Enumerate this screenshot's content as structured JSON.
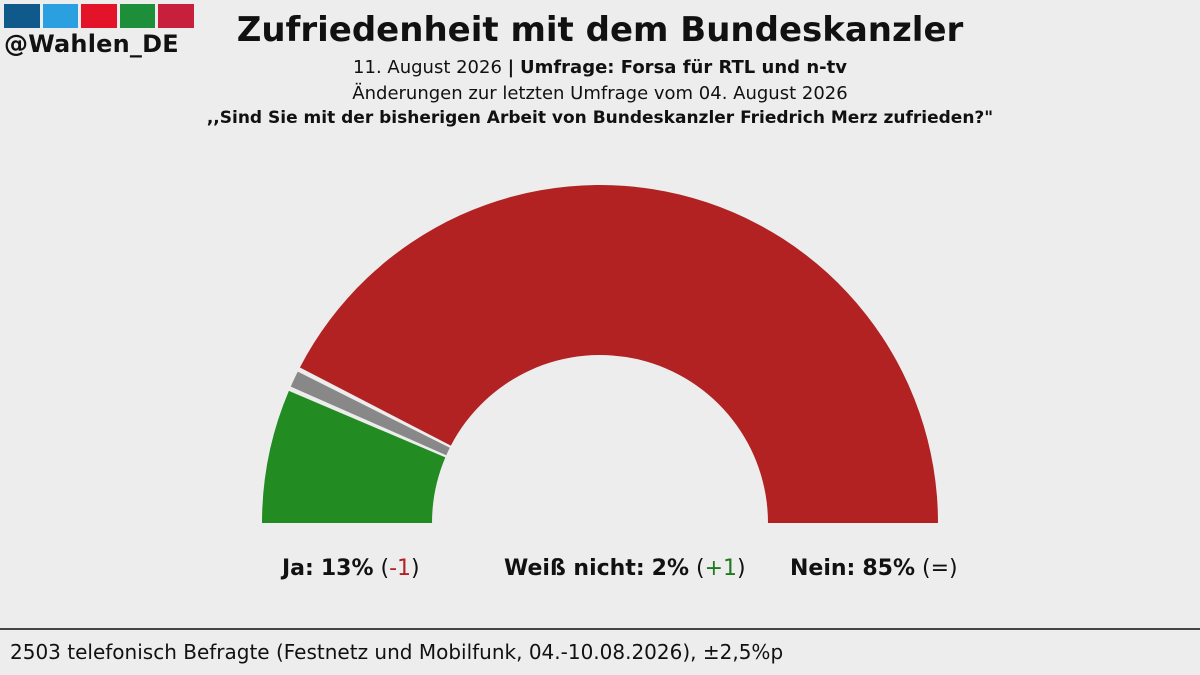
{
  "brand": {
    "handle": "@Wahlen_DE",
    "bar_colors": [
      "#0f5a8a",
      "#2aa0e0",
      "#e3142a",
      "#1d8f3a",
      "#c8203c"
    ]
  },
  "header": {
    "title": "Zufriedenheit mit dem Bundeskanzler",
    "date": "11. August 2026",
    "separator": "|",
    "source": "Umfrage: Forsa für RTL und n-tv",
    "changes": "Änderungen zur letzten Umfrage vom 04. August 2026",
    "question": ",,Sind Sie mit der bisherigen Arbeit von Bundeskanzler Friedrich Merz zufrieden?\""
  },
  "chart_data": {
    "type": "pie",
    "shape": "half-donut",
    "categories": [
      "Ja",
      "Weiß nicht",
      "Nein"
    ],
    "values": [
      13,
      2,
      85
    ],
    "changes": [
      "-1",
      "+1",
      "="
    ],
    "colors": [
      "#228b22",
      "#888888",
      "#b22222"
    ]
  },
  "labels": [
    {
      "name": "Ja:",
      "value": "13%",
      "open": "(",
      "change": "-1",
      "close": ")"
    },
    {
      "name": "Weiß nicht:",
      "value": "2%",
      "open": "(",
      "change": "+1",
      "close": ")"
    },
    {
      "name": "Nein:",
      "value": "85%",
      "open": "(",
      "change": "=",
      "close": ")"
    }
  ],
  "footer": {
    "text": "2503 telefonisch Befragte (Festnetz und Mobilfunk, 04.-10.08.2026), ±2,5%p"
  }
}
